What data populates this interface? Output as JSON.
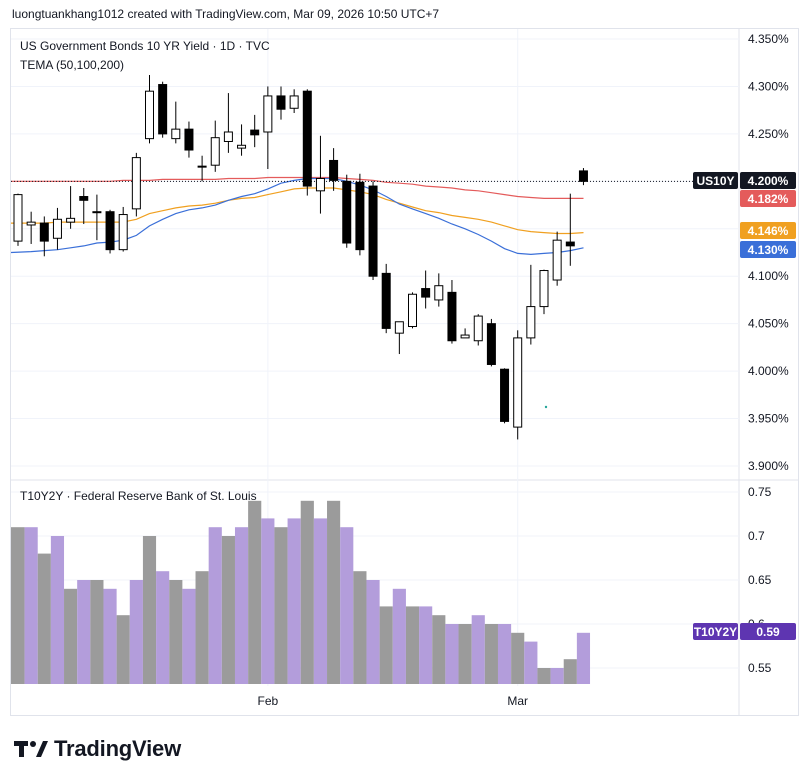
{
  "header": {
    "attribution": "luongtuankhang1012 created with TradingView.com, Mar 09, 2026 10:50 UTC+7"
  },
  "footer": {
    "brand": "TradingView"
  },
  "colors": {
    "bull_body": "#ffffff",
    "bear_body": "#000000",
    "wick": "#000000",
    "tema_50": "#3a6fd8",
    "tema_100": "#f0a020",
    "tema_200": "#e45b5b",
    "volume_a": "#9b9b9b",
    "volume_b": "#b39ddb",
    "t10y2y_badge": "#5e35b1",
    "us10y_badge": "#131722"
  },
  "chart_data": [
    {
      "type": "candlestick",
      "title": "US Government Bonds 10 YR Yield · 1D · TVC",
      "indicator_label": "TEMA (50,100,200)",
      "ylim": [
        3.89,
        4.36
      ],
      "y_ticks": [
        "4.350%",
        "4.300%",
        "4.250%",
        "4.200%",
        "4.150%",
        "4.100%",
        "4.050%",
        "4.000%",
        "3.950%",
        "3.900%"
      ],
      "y_tick_values": [
        4.35,
        4.3,
        4.25,
        4.2,
        4.15,
        4.1,
        4.05,
        4.0,
        3.95,
        3.9
      ],
      "x_labels": [
        {
          "label": "Feb",
          "index": 19
        },
        {
          "label": "Mar",
          "index": 38
        }
      ],
      "candles": [
        {
          "o": 4.137,
          "h": 4.187,
          "l": 4.132,
          "c": 4.186
        },
        {
          "o": 4.154,
          "h": 4.168,
          "l": 4.134,
          "c": 4.157
        },
        {
          "o": 4.156,
          "h": 4.163,
          "l": 4.121,
          "c": 4.137
        },
        {
          "o": 4.14,
          "h": 4.172,
          "l": 4.128,
          "c": 4.16
        },
        {
          "o": 4.157,
          "h": 4.195,
          "l": 4.15,
          "c": 4.161
        },
        {
          "o": 4.184,
          "h": 4.193,
          "l": 4.155,
          "c": 4.18
        },
        {
          "o": 4.168,
          "h": 4.186,
          "l": 4.138,
          "c": 4.167
        },
        {
          "o": 4.168,
          "h": 4.17,
          "l": 4.124,
          "c": 4.128
        },
        {
          "o": 4.128,
          "h": 4.173,
          "l": 4.126,
          "c": 4.165
        },
        {
          "o": 4.171,
          "h": 4.23,
          "l": 4.163,
          "c": 4.225
        },
        {
          "o": 4.245,
          "h": 4.312,
          "l": 4.24,
          "c": 4.295
        },
        {
          "o": 4.302,
          "h": 4.305,
          "l": 4.246,
          "c": 4.25
        },
        {
          "o": 4.245,
          "h": 4.284,
          "l": 4.24,
          "c": 4.255
        },
        {
          "o": 4.255,
          "h": 4.263,
          "l": 4.225,
          "c": 4.233
        },
        {
          "o": 4.216,
          "h": 4.227,
          "l": 4.2,
          "c": 4.216
        },
        {
          "o": 4.217,
          "h": 4.264,
          "l": 4.21,
          "c": 4.246
        },
        {
          "o": 4.242,
          "h": 4.293,
          "l": 4.23,
          "c": 4.252
        },
        {
          "o": 4.235,
          "h": 4.26,
          "l": 4.227,
          "c": 4.238
        },
        {
          "o": 4.254,
          "h": 4.27,
          "l": 4.236,
          "c": 4.249
        },
        {
          "o": 4.252,
          "h": 4.3,
          "l": 4.213,
          "c": 4.29
        },
        {
          "o": 4.29,
          "h": 4.3,
          "l": 4.265,
          "c": 4.276
        },
        {
          "o": 4.277,
          "h": 4.297,
          "l": 4.272,
          "c": 4.29
        },
        {
          "o": 4.295,
          "h": 4.297,
          "l": 4.185,
          "c": 4.195
        },
        {
          "o": 4.19,
          "h": 4.248,
          "l": 4.166,
          "c": 4.203
        },
        {
          "o": 4.222,
          "h": 4.235,
          "l": 4.19,
          "c": 4.201
        },
        {
          "o": 4.2,
          "h": 4.207,
          "l": 4.13,
          "c": 4.135
        },
        {
          "o": 4.199,
          "h": 4.208,
          "l": 4.122,
          "c": 4.128
        },
        {
          "o": 4.195,
          "h": 4.2,
          "l": 4.096,
          "c": 4.1
        },
        {
          "o": 4.103,
          "h": 4.113,
          "l": 4.04,
          "c": 4.045
        },
        {
          "o": 4.04,
          "h": 4.052,
          "l": 4.018,
          "c": 4.052
        },
        {
          "o": 4.047,
          "h": 4.083,
          "l": 4.045,
          "c": 4.081
        },
        {
          "o": 4.087,
          "h": 4.106,
          "l": 4.066,
          "c": 4.078
        },
        {
          "o": 4.075,
          "h": 4.103,
          "l": 4.068,
          "c": 4.09
        },
        {
          "o": 4.083,
          "h": 4.096,
          "l": 4.029,
          "c": 4.032
        },
        {
          "o": 4.035,
          "h": 4.045,
          "l": 4.035,
          "c": 4.038
        },
        {
          "o": 4.032,
          "h": 4.06,
          "l": 4.027,
          "c": 4.058
        },
        {
          "o": 4.05,
          "h": 4.055,
          "l": 4.005,
          "c": 4.007
        },
        {
          "o": 4.002,
          "h": 4.003,
          "l": 3.945,
          "c": 3.947
        },
        {
          "o": 3.941,
          "h": 4.043,
          "l": 3.928,
          "c": 4.035
        },
        {
          "o": 4.035,
          "h": 4.112,
          "l": 4.028,
          "c": 4.068
        },
        {
          "o": 4.068,
          "h": 4.107,
          "l": 4.06,
          "c": 4.106
        },
        {
          "o": 4.096,
          "h": 4.147,
          "l": 4.09,
          "c": 4.138
        },
        {
          "o": 4.136,
          "h": 4.187,
          "l": 4.111,
          "c": 4.132
        },
        {
          "o": 4.211,
          "h": 4.214,
          "l": 4.196,
          "c": 4.2
        }
      ],
      "tema_lines": [
        {
          "name": "TEMA 200",
          "color": "#e45b5b",
          "values": [
            4.2,
            4.2,
            4.2,
            4.2,
            4.2,
            4.2,
            4.2,
            4.2,
            4.201,
            4.201,
            4.201,
            4.202,
            4.202,
            4.202,
            4.202,
            4.202,
            4.203,
            4.203,
            4.203,
            4.204,
            4.204,
            4.204,
            4.204,
            4.204,
            4.204,
            4.203,
            4.202,
            4.201,
            4.199,
            4.198,
            4.197,
            4.195,
            4.194,
            4.193,
            4.191,
            4.19,
            4.188,
            4.186,
            4.184,
            4.183,
            4.182,
            4.182,
            4.182,
            4.182
          ]
        },
        {
          "name": "TEMA 100",
          "color": "#f0a020",
          "values": [
            4.156,
            4.156,
            4.156,
            4.157,
            4.157,
            4.157,
            4.157,
            4.157,
            4.157,
            4.16,
            4.166,
            4.169,
            4.172,
            4.174,
            4.175,
            4.177,
            4.18,
            4.182,
            4.183,
            4.186,
            4.189,
            4.192,
            4.193,
            4.193,
            4.193,
            4.191,
            4.189,
            4.186,
            4.181,
            4.177,
            4.173,
            4.169,
            4.167,
            4.164,
            4.162,
            4.16,
            4.157,
            4.153,
            4.149,
            4.147,
            4.146,
            4.145,
            4.145,
            4.146
          ]
        },
        {
          "name": "TEMA 50",
          "color": "#3a6fd8",
          "values": [
            4.125,
            4.126,
            4.127,
            4.128,
            4.13,
            4.132,
            4.135,
            4.136,
            4.138,
            4.143,
            4.153,
            4.16,
            4.166,
            4.17,
            4.172,
            4.175,
            4.18,
            4.184,
            4.187,
            4.192,
            4.198,
            4.201,
            4.203,
            4.203,
            4.203,
            4.2,
            4.196,
            4.191,
            4.184,
            4.176,
            4.171,
            4.166,
            4.161,
            4.155,
            4.15,
            4.144,
            4.137,
            4.129,
            4.124,
            4.123,
            4.124,
            4.125,
            4.127,
            4.13
          ]
        }
      ],
      "current_price_line": 4.2,
      "last_value_badges": [
        {
          "label": "US10Y",
          "value": "4.200%",
          "y": 4.2,
          "color": "#131722"
        },
        {
          "label": "",
          "value": "4.182%",
          "y": 4.182,
          "color": "#e45b5b"
        },
        {
          "label": "",
          "value": "4.146%",
          "y": 4.146,
          "color": "#f0a020"
        },
        {
          "label": "",
          "value": "4.130%",
          "y": 4.13,
          "color": "#3a6fd8"
        }
      ]
    },
    {
      "type": "bar",
      "title": "T10Y2Y · Federal Reserve Bank of St. Louis",
      "ylim": [
        0.52,
        0.77
      ],
      "y_ticks": [
        "0.75",
        "0.7",
        "0.65",
        "0.6",
        "0.55"
      ],
      "y_tick_values": [
        0.75,
        0.7,
        0.65,
        0.6,
        0.55
      ],
      "values": [
        0.71,
        0.71,
        0.68,
        0.7,
        0.64,
        0.65,
        0.65,
        0.64,
        0.61,
        0.65,
        0.7,
        0.66,
        0.65,
        0.64,
        0.66,
        0.71,
        0.7,
        0.71,
        0.74,
        0.72,
        0.71,
        0.72,
        0.74,
        0.72,
        0.74,
        0.71,
        0.66,
        0.65,
        0.62,
        0.64,
        0.62,
        0.62,
        0.61,
        0.6,
        0.6,
        0.61,
        0.6,
        0.6,
        0.59,
        0.58,
        0.55,
        0.55,
        0.56,
        0.59
      ],
      "bar_colors_pattern": "alternating",
      "last_value_badge": {
        "label": "T10Y2Y",
        "value": "0.59",
        "y": 0.59
      }
    }
  ]
}
